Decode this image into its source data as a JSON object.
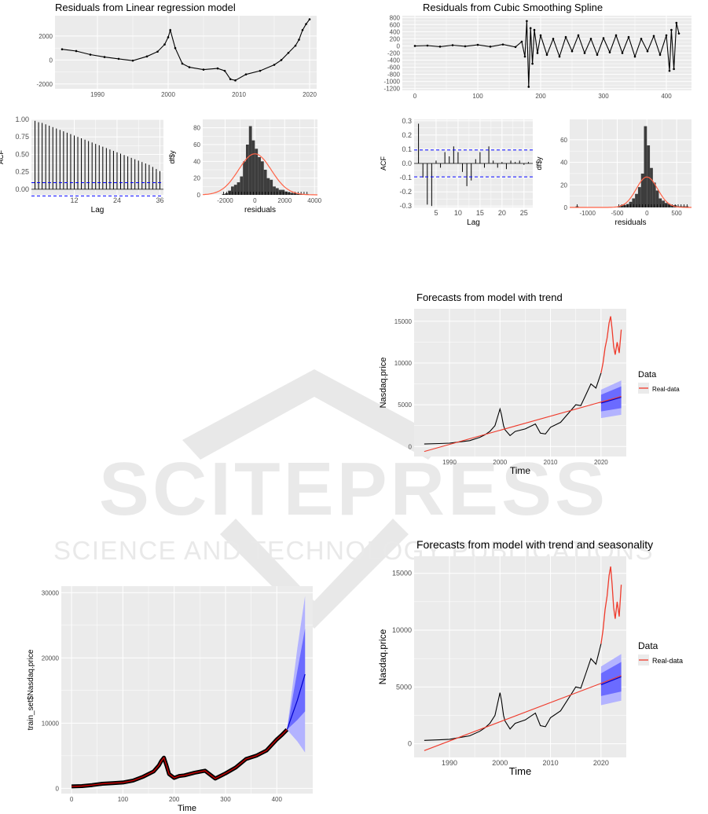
{
  "colors": {
    "panel_bg": "#ebebeb",
    "grid": "#ffffff",
    "line": "#000000",
    "histogram_bar": "#3d3d3d",
    "density_curve": "#ff6347",
    "acf_bound": "#0000ff",
    "forecast_band_outer": "#b3b3ff",
    "forecast_band_inner": "#6b6bff",
    "forecast_line": "#0000cc",
    "real_data": "#ef3b2c",
    "fitted_line": "#cc0000",
    "watermark": "#d0d0d0"
  },
  "watermark": {
    "logo_icon": "sciencepress-chevron-logo-icon",
    "main": "SCITEPRESS",
    "sub": "SCIENCE AND TECHNOLOGY PUBLICATIONS"
  },
  "chart_data": [
    {
      "id": "lr-residuals",
      "type": "line",
      "title": "Residuals from Linear regression model",
      "xlabel": "",
      "ylabel": "",
      "xlim": [
        1984,
        2021
      ],
      "ylim": [
        -2400,
        3700
      ],
      "xticks": [
        "1990",
        "2000",
        "2010",
        "2020"
      ],
      "xtick_values": [
        1990,
        2000,
        2010,
        2020
      ],
      "yticks": [
        "-2000",
        "0",
        "2000"
      ],
      "ytick_values": [
        -2000,
        0,
        2000
      ],
      "markers": true,
      "grid": true,
      "x": [
        1985,
        1987,
        1989,
        1991,
        1993,
        1995,
        1997,
        1998.5,
        1999.5,
        2000,
        2000.3,
        2001,
        2002,
        2003,
        2005,
        2007,
        2008,
        2008.8,
        2009.5,
        2011,
        2013,
        2015,
        2016,
        2017,
        2018,
        2018.5,
        2019,
        2019.5,
        2020
      ],
      "y": [
        900,
        750,
        450,
        250,
        100,
        -50,
        300,
        700,
        1300,
        1900,
        2500,
        1000,
        -300,
        -600,
        -800,
        -700,
        -900,
        -1600,
        -1700,
        -1200,
        -900,
        -400,
        0,
        600,
        1200,
        1700,
        2500,
        3000,
        3400
      ]
    },
    {
      "id": "lr-acf",
      "type": "bar",
      "title": "",
      "xlabel": "Lag",
      "ylabel": "ACF",
      "xlim": [
        0,
        37
      ],
      "ylim": [
        -0.08,
        1.0
      ],
      "xticks": [
        "12",
        "24",
        "36"
      ],
      "xtick_values": [
        12,
        24,
        36
      ],
      "yticks": [
        "0.00",
        "0.25",
        "0.50",
        "0.75",
        "1.00"
      ],
      "ytick_values": [
        0,
        0.25,
        0.5,
        0.75,
        1.0
      ],
      "bound": 0.095,
      "grid": true,
      "lags": [
        1,
        2,
        3,
        4,
        5,
        6,
        7,
        8,
        9,
        10,
        11,
        12,
        13,
        14,
        15,
        16,
        17,
        18,
        19,
        20,
        21,
        22,
        23,
        24,
        25,
        26,
        27,
        28,
        29,
        30,
        31,
        32,
        33,
        34,
        35,
        36
      ],
      "values": [
        0.98,
        0.96,
        0.95,
        0.93,
        0.91,
        0.89,
        0.87,
        0.85,
        0.83,
        0.81,
        0.79,
        0.77,
        0.75,
        0.73,
        0.71,
        0.69,
        0.67,
        0.65,
        0.63,
        0.61,
        0.59,
        0.57,
        0.55,
        0.53,
        0.51,
        0.49,
        0.47,
        0.45,
        0.43,
        0.41,
        0.39,
        0.37,
        0.35,
        0.32,
        0.29,
        0.26
      ]
    },
    {
      "id": "lr-hist",
      "type": "bar",
      "title": "",
      "xlabel": "residuals",
      "ylabel": "df$y",
      "xlim": [
        -3500,
        4200
      ],
      "ylim": [
        0,
        90
      ],
      "xticks": [
        "-2000",
        "0",
        "2000",
        "4000"
      ],
      "xtick_values": [
        -2000,
        0,
        2000,
        4000
      ],
      "yticks": [
        "0",
        "20",
        "40",
        "60",
        "80"
      ],
      "ytick_values": [
        0,
        20,
        40,
        60,
        80
      ],
      "bin_width": 200,
      "grid": true,
      "bin_centers": [
        -2100,
        -1900,
        -1700,
        -1500,
        -1300,
        -1100,
        -900,
        -700,
        -500,
        -300,
        -100,
        100,
        300,
        500,
        700,
        900,
        1100,
        1300,
        1500,
        1700,
        1900,
        2100,
        2300,
        2500,
        2700,
        2900,
        3100,
        3300,
        3500
      ],
      "values": [
        1,
        2,
        5,
        10,
        12,
        15,
        22,
        40,
        60,
        82,
        65,
        55,
        45,
        40,
        30,
        20,
        18,
        10,
        8,
        6,
        6,
        4,
        3,
        2,
        2,
        1,
        1,
        1,
        1
      ],
      "density_mean": 0,
      "density_sd": 1100,
      "density_peak": 49
    },
    {
      "id": "spline-residuals",
      "type": "line",
      "title": "Residuals from Cubic Smoothing Spline",
      "xlabel": "",
      "ylabel": "",
      "xlim": [
        -20,
        440
      ],
      "ylim": [
        -1250,
        850
      ],
      "xticks": [
        "0",
        "100",
        "200",
        "300",
        "400"
      ],
      "xtick_values": [
        0,
        100,
        200,
        300,
        400
      ],
      "yticks": [
        "-1200",
        "-1000",
        "-800",
        "-600",
        "-400",
        "-200",
        "0",
        "200",
        "400",
        "600",
        "800"
      ],
      "ytick_values": [
        -1200,
        -1000,
        -800,
        -600,
        -400,
        -200,
        0,
        200,
        400,
        600,
        800
      ],
      "markers": true,
      "grid": true,
      "x": [
        0,
        20,
        40,
        60,
        80,
        100,
        120,
        140,
        160,
        170,
        175,
        178,
        181,
        184,
        187,
        190,
        195,
        200,
        210,
        220,
        230,
        240,
        250,
        260,
        270,
        280,
        290,
        300,
        310,
        320,
        330,
        340,
        350,
        360,
        370,
        380,
        390,
        400,
        405,
        408,
        412,
        416,
        420
      ],
      "y": [
        0,
        10,
        -20,
        20,
        -10,
        30,
        -20,
        40,
        -30,
        120,
        -300,
        700,
        -1150,
        500,
        -500,
        450,
        -200,
        300,
        -250,
        200,
        -300,
        250,
        -150,
        300,
        -200,
        200,
        -250,
        220,
        -180,
        300,
        -200,
        250,
        -300,
        200,
        -150,
        280,
        -250,
        300,
        -700,
        450,
        -650,
        650,
        350
      ]
    },
    {
      "id": "spline-acf",
      "type": "bar",
      "title": "",
      "xlabel": "Lag",
      "ylabel": "ACF",
      "xlim": [
        0,
        27
      ],
      "ylim": [
        -0.31,
        0.31
      ],
      "xticks": [
        "5",
        "10",
        "15",
        "20",
        "25"
      ],
      "xtick_values": [
        5,
        10,
        15,
        20,
        25
      ],
      "yticks": [
        "-0.3",
        "-0.2",
        "-0.1",
        "0.0",
        "0.1",
        "0.2",
        "0.3"
      ],
      "ytick_values": [
        -0.3,
        -0.2,
        -0.1,
        0,
        0.1,
        0.2,
        0.3
      ],
      "bound": 0.095,
      "grid": true,
      "lags": [
        1,
        2,
        3,
        4,
        5,
        6,
        7,
        8,
        9,
        10,
        11,
        12,
        13,
        14,
        15,
        16,
        17,
        18,
        19,
        20,
        21,
        22,
        23,
        24,
        25,
        26
      ],
      "values": [
        0.28,
        -0.1,
        -0.29,
        -0.3,
        0.02,
        -0.03,
        0.08,
        0.05,
        0.12,
        0.08,
        -0.06,
        -0.16,
        -0.12,
        0.03,
        0.08,
        -0.03,
        0.12,
        0.02,
        -0.03,
        0.01,
        -0.04,
        0.02,
        0.01,
        0.02,
        -0.01,
        0.01
      ]
    },
    {
      "id": "spline-hist",
      "type": "bar",
      "title": "",
      "xlabel": "residuals",
      "ylabel": "df$y",
      "xlim": [
        -1300,
        750
      ],
      "ylim": [
        0,
        78
      ],
      "xticks": [
        "-1000",
        "-500",
        "0",
        "500"
      ],
      "xtick_values": [
        -1000,
        -500,
        0,
        500
      ],
      "yticks": [
        "0",
        "20",
        "40",
        "60"
      ],
      "ytick_values": [
        0,
        20,
        40,
        60
      ],
      "bin_width": 50,
      "grid": true,
      "bin_centers": [
        -1175,
        -475,
        -425,
        -375,
        -325,
        -275,
        -225,
        -175,
        -125,
        -75,
        -25,
        25,
        75,
        125,
        175,
        225,
        275,
        325,
        375,
        425,
        475,
        525,
        575,
        625,
        675
      ],
      "values": [
        1,
        1,
        2,
        2,
        3,
        5,
        8,
        12,
        18,
        30,
        72,
        55,
        35,
        22,
        15,
        8,
        6,
        4,
        3,
        2,
        2,
        1,
        1,
        1,
        1
      ],
      "density_mean": 0,
      "density_sd": 180,
      "density_peak": 27
    },
    {
      "id": "forecast-trend",
      "type": "line",
      "title": "Forecasts from model with trend",
      "xlabel": "Time",
      "ylabel": "Nasdaq.price",
      "xlim": [
        1983,
        2025
      ],
      "ylim": [
        -1200,
        16500
      ],
      "xticks": [
        "1990",
        "2000",
        "2010",
        "2020"
      ],
      "xtick_values": [
        1990,
        2000,
        2010,
        2020
      ],
      "yticks": [
        "0",
        "5000",
        "10000",
        "15000"
      ],
      "ytick_values": [
        0,
        5000,
        10000,
        15000
      ],
      "legend_title": "Data",
      "legend_placement": "right",
      "grid": true,
      "series": [
        {
          "name": "",
          "role": "observed",
          "x": [
            1985,
            1988,
            1990,
            1992,
            1994,
            1996,
            1997,
            1998,
            1999,
            1999.5,
            2000,
            2000.3,
            2000.7,
            2001,
            2002,
            2003,
            2005,
            2007,
            2008,
            2009,
            2010,
            2012,
            2014,
            2015,
            2016,
            2017,
            2018,
            2019,
            2020
          ],
          "y": [
            300,
            350,
            400,
            550,
            700,
            1100,
            1400,
            1800,
            2500,
            3500,
            4500,
            3800,
            2500,
            2000,
            1300,
            1800,
            2100,
            2700,
            1600,
            1500,
            2300,
            2900,
            4300,
            5000,
            4900,
            6200,
            7500,
            7000,
            8800
          ]
        },
        {
          "name": "",
          "role": "trend",
          "x": [
            1985,
            2024
          ],
          "y": [
            -600,
            6000
          ]
        },
        {
          "name": "Real-data",
          "role": "real",
          "x": [
            2020,
            2020.4,
            2020.8,
            2021.2,
            2021.6,
            2021.9,
            2022.2,
            2022.5,
            2022.8,
            2023.2,
            2023.6,
            2024
          ],
          "y": [
            8800,
            10000,
            11800,
            13000,
            14800,
            15600,
            14000,
            12000,
            11000,
            12500,
            11200,
            14000
          ]
        },
        {
          "name": "",
          "role": "forecast",
          "x": [
            2020,
            2024
          ],
          "y": [
            5200,
            5900
          ],
          "inner_lo": [
            4200,
            4600
          ],
          "inner_hi": [
            6200,
            7200
          ],
          "outer_lo": [
            3400,
            3800
          ],
          "outer_hi": [
            6800,
            7900
          ]
        }
      ]
    },
    {
      "id": "forecast-trend-season",
      "type": "line",
      "title": "Forecasts from model with trend and seasonality",
      "xlabel": "Time",
      "ylabel": "Nasdaq.price",
      "xlim": [
        1983,
        2025
      ],
      "ylim": [
        -1200,
        16500
      ],
      "xticks": [
        "1990",
        "2000",
        "2010",
        "2020"
      ],
      "xtick_values": [
        1990,
        2000,
        2010,
        2020
      ],
      "yticks": [
        "0",
        "5000",
        "10000",
        "15000"
      ],
      "ytick_values": [
        0,
        5000,
        10000,
        15000
      ],
      "legend_title": "Data",
      "legend_placement": "right",
      "grid": true,
      "series": [
        {
          "name": "",
          "role": "observed",
          "x": [
            1985,
            1988,
            1990,
            1992,
            1994,
            1996,
            1997,
            1998,
            1999,
            1999.5,
            2000,
            2000.3,
            2000.7,
            2001,
            2002,
            2003,
            2005,
            2007,
            2008,
            2009,
            2010,
            2012,
            2014,
            2015,
            2016,
            2017,
            2018,
            2019,
            2020
          ],
          "y": [
            300,
            350,
            400,
            550,
            700,
            1100,
            1400,
            1800,
            2500,
            3500,
            4500,
            3800,
            2500,
            2000,
            1300,
            1800,
            2100,
            2700,
            1600,
            1500,
            2300,
            2900,
            4300,
            5000,
            4900,
            6200,
            7500,
            7000,
            8800
          ]
        },
        {
          "name": "",
          "role": "trend",
          "x": [
            1985,
            2024
          ],
          "y": [
            -600,
            6000
          ]
        },
        {
          "name": "Real-data",
          "role": "real",
          "x": [
            2020,
            2020.4,
            2020.8,
            2021.2,
            2021.6,
            2021.9,
            2022.2,
            2022.5,
            2022.8,
            2023.2,
            2023.6,
            2024
          ],
          "y": [
            8800,
            10000,
            11800,
            13000,
            14800,
            15600,
            14000,
            12000,
            11000,
            12500,
            11200,
            14000
          ]
        },
        {
          "name": "",
          "role": "forecast",
          "x": [
            2020,
            2024
          ],
          "y": [
            5200,
            5900
          ],
          "inner_lo": [
            4200,
            4600
          ],
          "inner_hi": [
            6200,
            7200
          ],
          "outer_lo": [
            3400,
            3800
          ],
          "outer_hi": [
            6800,
            7900
          ]
        }
      ]
    },
    {
      "id": "train-forecast",
      "type": "line",
      "title": "",
      "xlabel": "Time",
      "ylabel": "train_set$Nasdaq.price",
      "xlim": [
        -20,
        470
      ],
      "ylim": [
        -800,
        31000
      ],
      "xticks": [
        "0",
        "100",
        "200",
        "300",
        "400"
      ],
      "xtick_values": [
        0,
        100,
        200,
        300,
        400
      ],
      "yticks": [
        "0",
        "10000",
        "20000",
        "30000"
      ],
      "ytick_values": [
        0,
        10000,
        20000,
        30000
      ],
      "grid": true,
      "series": [
        {
          "name": "",
          "role": "observed-thick",
          "x": [
            0,
            20,
            40,
            60,
            80,
            100,
            120,
            140,
            160,
            170,
            175,
            180,
            185,
            190,
            200,
            210,
            220,
            240,
            260,
            270,
            280,
            290,
            300,
            320,
            340,
            360,
            380,
            400,
            410,
            420
          ],
          "y": [
            300,
            350,
            500,
            700,
            800,
            900,
            1200,
            1800,
            2600,
            3500,
            4200,
            4700,
            3500,
            2200,
            1600,
            1900,
            2000,
            2400,
            2700,
            2100,
            1500,
            1900,
            2300,
            3200,
            4500,
            5000,
            5800,
            7500,
            8200,
            9000
          ]
        },
        {
          "name": "",
          "role": "fitted",
          "x": [
            0,
            20,
            40,
            60,
            80,
            100,
            120,
            140,
            160,
            170,
            175,
            180,
            185,
            190,
            200,
            210,
            220,
            240,
            260,
            270,
            280,
            290,
            300,
            320,
            340,
            360,
            380,
            400,
            410,
            420
          ],
          "y": [
            300,
            350,
            500,
            700,
            800,
            900,
            1200,
            1800,
            2600,
            3500,
            4200,
            4700,
            3500,
            2200,
            1600,
            1900,
            2000,
            2400,
            2700,
            2100,
            1500,
            1900,
            2300,
            3200,
            4500,
            5000,
            5800,
            7500,
            8200,
            9000
          ]
        },
        {
          "name": "",
          "role": "forecast",
          "x": [
            420,
            440,
            455
          ],
          "y": [
            9000,
            13500,
            17500
          ],
          "inner_lo": [
            9000,
            10500,
            11800
          ],
          "inner_hi": [
            9000,
            18000,
            24500
          ],
          "outer_lo": [
            9000,
            7200,
            5500
          ],
          "outer_hi": [
            9000,
            21500,
            29500
          ]
        }
      ]
    }
  ]
}
